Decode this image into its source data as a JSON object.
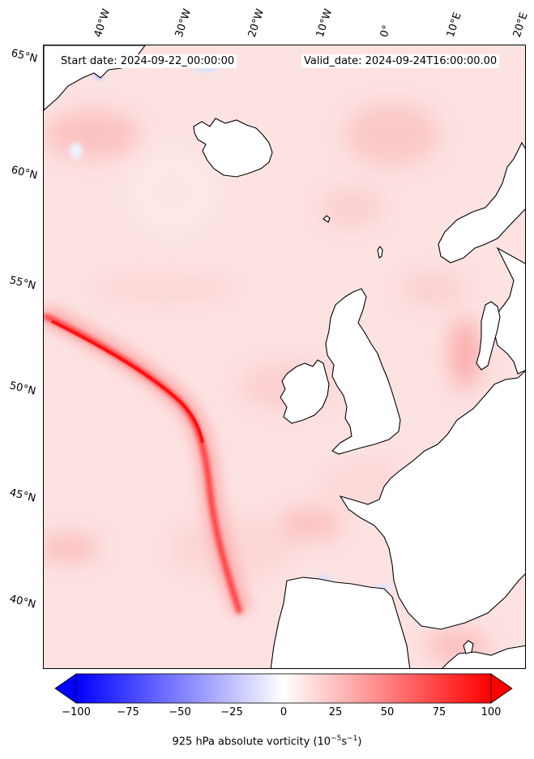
{
  "map": {
    "start_date": "Start date: 2024-09-22_00:00:00",
    "valid_date": "Valid_date: 2024-09-24T16:00:00.00",
    "longitude_labels": [
      "40°W",
      "30°W",
      "20°W",
      "10°W",
      "0°",
      "10°E",
      "20°E"
    ],
    "latitude_labels": [
      "65°N",
      "60°N",
      "55°N",
      "50°N",
      "45°N",
      "40°N"
    ],
    "field_colors": {
      "land": "#ffffff",
      "sea_base": "#fde2e2",
      "strong_positive": "#ff1a1a",
      "negative": "#c8d4ff",
      "coastline": "#000000"
    }
  },
  "colorbar": {
    "ticks": [
      "−100",
      "−75",
      "−50",
      "−25",
      "0",
      "25",
      "50",
      "75",
      "100"
    ],
    "min": -100,
    "max": 100,
    "label_prefix": "925 hPa absolute vorticity (10",
    "label_exp1": "−5",
    "label_mid": "s",
    "label_exp2": "−1",
    "label_suffix": ")",
    "color_low": "#0000ff",
    "color_mid": "#ffffff",
    "color_high": "#ff0000"
  }
}
